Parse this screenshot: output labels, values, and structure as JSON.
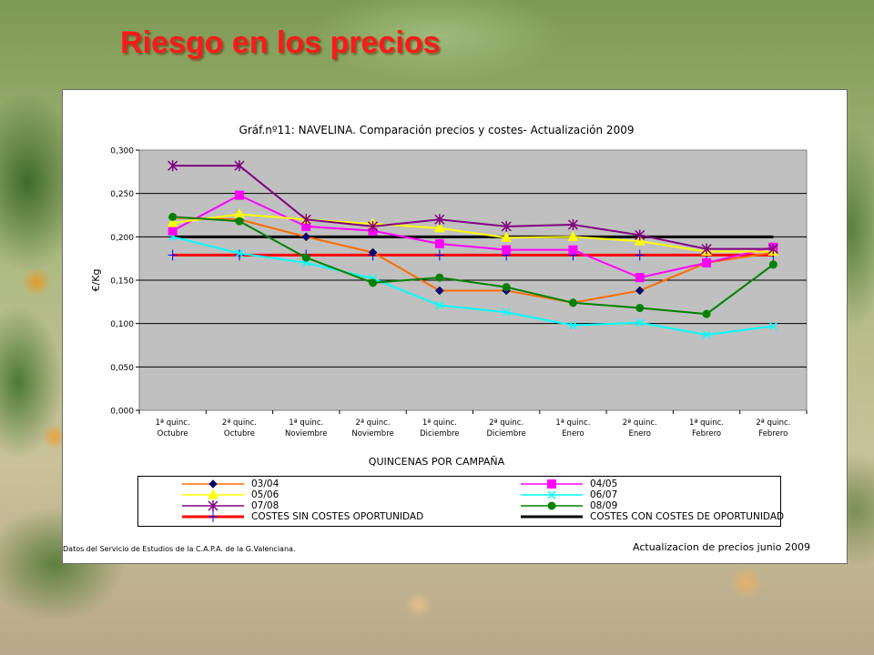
{
  "slide": {
    "title": "Riesgo en los precios"
  },
  "chart_data": {
    "type": "line",
    "title": "Gráf.nº11: NAVELINA. Comparación precios y costes- Actualización 2009",
    "xlabel": "QUINCENAS POR CAMPAÑA",
    "ylabel": "€/Kg",
    "ylim": [
      0,
      0.3
    ],
    "yticks": [
      "0,000",
      "0,050",
      "0,100",
      "0,150",
      "0,200",
      "0,250",
      "0,300"
    ],
    "ytick_values": [
      0,
      0.05,
      0.1,
      0.15,
      0.2,
      0.25,
      0.3
    ],
    "categories": [
      [
        "1ª quinc.",
        "Octubre"
      ],
      [
        "2ª quinc.",
        "Octubre"
      ],
      [
        "1ª quinc.",
        "Noviembre"
      ],
      [
        "2ª quinc.",
        "Noviembre"
      ],
      [
        "1ª quinc.",
        "Diciembre"
      ],
      [
        "2ª quinc.",
        "Diciembre"
      ],
      [
        "1ª quinc.",
        "Enero"
      ],
      [
        "2ª quinc.",
        "Enero"
      ],
      [
        "1ª quinc.",
        "Febrero"
      ],
      [
        "2ª quinc.",
        "Febrero"
      ]
    ],
    "grid": true,
    "plot_background": "#c0c0c0",
    "series": [
      {
        "name": "03/04",
        "color": "#ff6a00",
        "marker": "diamond",
        "marker_color": "#000080",
        "values": [
          0.222,
          0.22,
          0.2,
          0.182,
          0.138,
          0.138,
          0.124,
          0.138,
          0.17,
          0.182
        ]
      },
      {
        "name": "04/05",
        "color": "#ff00ff",
        "marker": "square",
        "marker_color": "#ff00ff",
        "values": [
          0.207,
          0.248,
          0.212,
          0.207,
          0.192,
          0.185,
          0.185,
          0.153,
          0.17,
          0.188
        ]
      },
      {
        "name": "05/06",
        "color": "#ffff00",
        "marker": "triangle",
        "marker_color": "#ffff00",
        "values": [
          0.216,
          0.226,
          0.22,
          0.215,
          0.21,
          0.199,
          0.2,
          0.195,
          0.183,
          0.183
        ]
      },
      {
        "name": "06/07",
        "color": "#00ffff",
        "marker": "x",
        "marker_color": "#00ffff",
        "values": [
          0.2,
          0.181,
          0.17,
          0.152,
          0.121,
          0.113,
          0.098,
          0.101,
          0.087,
          0.097
        ]
      },
      {
        "name": "07/08",
        "color": "#800080",
        "marker": "star",
        "marker_color": "#800080",
        "values": [
          0.282,
          0.282,
          0.22,
          0.212,
          0.22,
          0.212,
          0.214,
          0.202,
          0.186,
          0.186
        ]
      },
      {
        "name": "08/09",
        "color": "#008000",
        "marker": "circle",
        "marker_color": "#008000",
        "values": [
          0.223,
          0.218,
          0.176,
          0.147,
          0.153,
          0.142,
          0.124,
          0.118,
          0.111,
          0.168
        ]
      },
      {
        "name": "COSTES SIN COSTES OPORTUNIDAD",
        "color": "#ff0000",
        "marker": "plus",
        "marker_color": "#0000ff",
        "values": [
          0.179,
          0.179,
          0.179,
          0.179,
          0.179,
          0.179,
          0.179,
          0.179,
          0.179,
          0.179
        ]
      },
      {
        "name": "COSTES CON COSTES DE OPORTUNIDAD",
        "color": "#000000",
        "marker": "none",
        "marker_color": "#0000ff",
        "values": [
          0.2,
          0.2,
          0.2,
          0.2,
          0.2,
          0.2,
          0.2,
          0.2,
          0.2,
          0.2
        ]
      }
    ],
    "legend_position": "bottom",
    "source_note": "Datos del Servicio de Estudios de la C.A.P.A. de la G.Valenciana.",
    "update_note": "Actualizacion de precios junio 2009"
  }
}
